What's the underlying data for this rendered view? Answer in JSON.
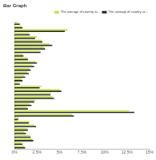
{
  "chart_data": {
    "type": "bar",
    "title": "Bar Graph",
    "orientation": "horizontal",
    "categories": [
      null,
      null,
      null,
      null,
      null,
      null,
      null,
      null,
      null,
      null,
      null,
      null,
      null,
      null,
      null,
      null,
      null,
      null,
      null,
      null,
      null,
      null,
      null,
      null,
      null,
      null,
      null,
      null,
      null,
      null,
      null,
      null,
      null,
      null,
      null,
      null
    ],
    "series": [
      {
        "name": "The average of country sc...",
        "color": "#c8d84a",
        "values": [
          0.4,
          0.8,
          5.9,
          1.6,
          2.5,
          3.0,
          3.9,
          3.3,
          2.8,
          0.9,
          1.4,
          2.3,
          2.0,
          1.7,
          1.4,
          1.1,
          0.8,
          0.5,
          3.0,
          5.0,
          4.1,
          4.2,
          2.3,
          1.7,
          1.4,
          12.7,
          6.4,
          0.5,
          1.7,
          2.2,
          1.4,
          1.1,
          1.7,
          2.0,
          0.8,
          1.1
        ]
      },
      {
        "name": "The average of country sc...",
        "color": "#1e2a1e",
        "values": [
          0.6,
          0.9,
          5.6,
          1.7,
          2.3,
          3.1,
          4.2,
          3.4,
          2.9,
          1.0,
          1.5,
          2.5,
          2.2,
          1.8,
          1.6,
          1.2,
          0.9,
          0.6,
          2.8,
          5.2,
          4.0,
          4.4,
          2.2,
          1.9,
          1.5,
          13.3,
          6.6,
          0.4,
          1.6,
          2.4,
          1.5,
          1.3,
          1.8,
          2.1,
          0.9,
          1.2
        ]
      }
    ],
    "xlim": [
      0,
      15
    ],
    "xticks": [
      {
        "value": 0,
        "label": "0%"
      },
      {
        "value": 2.5,
        "label": "2.5%"
      },
      {
        "value": 5,
        "label": "5%"
      },
      {
        "value": 7.5,
        "label": "7.5%"
      },
      {
        "value": 10,
        "label": "10%"
      },
      {
        "value": 12.5,
        "label": "12.5%"
      },
      {
        "value": 15,
        "label": "15%"
      }
    ],
    "grid": false,
    "legend": "top-right"
  }
}
